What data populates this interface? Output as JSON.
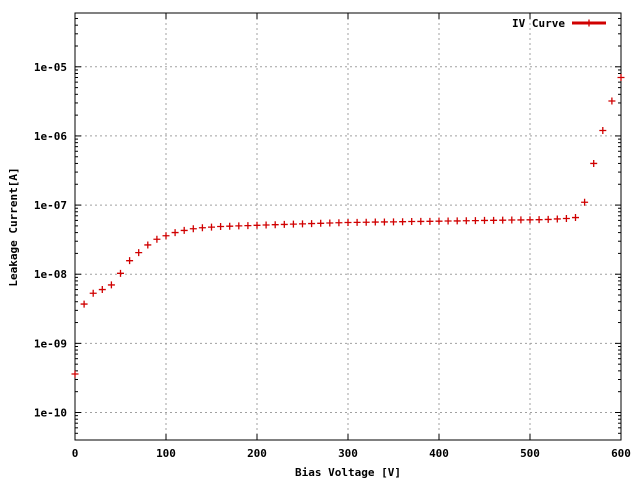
{
  "chart_data": {
    "type": "scatter",
    "xlabel": "Bias Voltage [V]",
    "ylabel": "Leakage Current[A]",
    "xlim": [
      0,
      600
    ],
    "ylim": [
      4e-11,
      6e-05
    ],
    "y_scale": "log",
    "grid": true,
    "legend_position": "top-right",
    "x_ticks": [
      {
        "value": 0,
        "label": "0"
      },
      {
        "value": 100,
        "label": "100"
      },
      {
        "value": 200,
        "label": "200"
      },
      {
        "value": 300,
        "label": "300"
      },
      {
        "value": 400,
        "label": "400"
      },
      {
        "value": 500,
        "label": "500"
      },
      {
        "value": 600,
        "label": "600"
      }
    ],
    "y_ticks": [
      {
        "value": 1e-10,
        "label": "1e-10"
      },
      {
        "value": 1e-09,
        "label": "1e-09"
      },
      {
        "value": 1e-08,
        "label": "1e-08"
      },
      {
        "value": 1e-07,
        "label": "1e-07"
      },
      {
        "value": 1e-06,
        "label": "1e-06"
      },
      {
        "value": 1e-05,
        "label": "1e-05"
      }
    ],
    "series": [
      {
        "name": "IV Curve",
        "color": "#d00000",
        "marker": "plus",
        "x": [
          0,
          10,
          20,
          30,
          40,
          50,
          60,
          70,
          80,
          90,
          100,
          110,
          120,
          130,
          140,
          150,
          160,
          170,
          180,
          190,
          200,
          210,
          220,
          230,
          240,
          250,
          260,
          270,
          280,
          290,
          300,
          310,
          320,
          330,
          340,
          350,
          360,
          370,
          380,
          390,
          400,
          410,
          420,
          430,
          440,
          450,
          460,
          470,
          480,
          490,
          500,
          510,
          520,
          530,
          540,
          550,
          560,
          570,
          580,
          590,
          600
        ],
        "y": [
          3.6e-10,
          3.7e-09,
          5.3e-09,
          6e-09,
          7e-09,
          1.03e-08,
          1.57e-08,
          2.05e-08,
          2.65e-08,
          3.2e-08,
          3.6e-08,
          4e-08,
          4.3e-08,
          4.55e-08,
          4.7e-08,
          4.8e-08,
          4.9e-08,
          4.95e-08,
          5e-08,
          5.05e-08,
          5.1e-08,
          5.15e-08,
          5.2e-08,
          5.25e-08,
          5.3e-08,
          5.35e-08,
          5.4e-08,
          5.45e-08,
          5.5e-08,
          5.55e-08,
          5.6e-08,
          5.62e-08,
          5.65e-08,
          5.68e-08,
          5.7e-08,
          5.72e-08,
          5.75e-08,
          5.78e-08,
          5.8e-08,
          5.82e-08,
          5.85e-08,
          5.88e-08,
          5.9e-08,
          5.93e-08,
          5.96e-08,
          6e-08,
          6.02e-08,
          6.05e-08,
          6.08e-08,
          6.1e-08,
          6.12e-08,
          6.15e-08,
          6.2e-08,
          6.3e-08,
          6.4e-08,
          6.6e-08,
          1.1e-07,
          4e-07,
          1.2e-06,
          3.2e-06,
          7e-06
        ]
      }
    ]
  }
}
